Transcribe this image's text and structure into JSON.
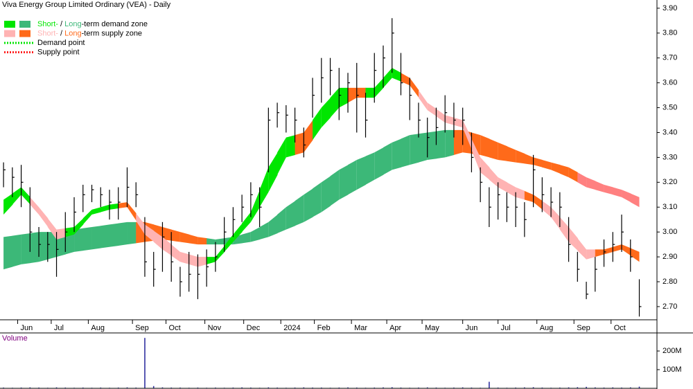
{
  "chart_data": [
    {
      "type": "candlestick",
      "title": "Viva Energy Group Limited Ordinary (VEA) - Daily",
      "legend": [
        {
          "swatches": [
            "#00e600",
            "#3cb878"
          ],
          "parts": [
            {
              "text": "Short-",
              "color": "#00e600"
            },
            {
              "text": " / "
            },
            {
              "text": "Long",
              "color": "#3cb878"
            },
            {
              "text": "-term demand zone"
            }
          ]
        },
        {
          "swatches": [
            "#ffb3b3",
            "#ff6a1a"
          ],
          "parts": [
            {
              "text": "Short-",
              "color": "#ffb3b3"
            },
            {
              "text": " / "
            },
            {
              "text": "Long",
              "color": "#ff6a1a"
            },
            {
              "text": "-term supply zone"
            }
          ]
        },
        {
          "line": "#00e600",
          "parts": [
            {
              "text": "Demand point"
            }
          ]
        },
        {
          "line": "#ff2020",
          "parts": [
            {
              "text": "Supply point"
            }
          ]
        }
      ],
      "xlim": [
        0,
        372
      ],
      "xticks": [
        {
          "value": 10,
          "label": "Jun"
        },
        {
          "value": 29,
          "label": "Jul"
        },
        {
          "value": 50,
          "label": "Aug"
        },
        {
          "value": 75,
          "label": "Sep"
        },
        {
          "value": 94,
          "label": "Oct"
        },
        {
          "value": 116,
          "label": "Nov"
        },
        {
          "value": 138,
          "label": "Dec"
        },
        {
          "value": 159,
          "label": "2024"
        },
        {
          "value": 178,
          "label": "Feb"
        },
        {
          "value": 199,
          "label": "Mar"
        },
        {
          "value": 219,
          "label": "Apr"
        },
        {
          "value": 239,
          "label": "May"
        },
        {
          "value": 262,
          "label": "Jun"
        },
        {
          "value": 282,
          "label": "Jul"
        },
        {
          "value": 304,
          "label": "Aug"
        },
        {
          "value": 325,
          "label": "Sep"
        },
        {
          "value": 346,
          "label": "Oct"
        }
      ],
      "ylim": [
        2.647,
        3.933
      ],
      "yticks": [
        {
          "value": 2.7,
          "label": "2.70"
        },
        {
          "value": 2.8,
          "label": "2.80"
        },
        {
          "value": 2.9,
          "label": "2.90"
        },
        {
          "value": 3.0,
          "label": "3.00"
        },
        {
          "value": 3.1,
          "label": "3.10"
        },
        {
          "value": 3.2,
          "label": "3.20"
        },
        {
          "value": 3.3,
          "label": "3.30"
        },
        {
          "value": 3.4,
          "label": "3.40"
        },
        {
          "value": 3.5,
          "label": "3.50"
        },
        {
          "value": 3.6,
          "label": "3.60"
        },
        {
          "value": 3.7,
          "label": "3.70"
        },
        {
          "value": 3.8,
          "label": "3.80"
        },
        {
          "value": 3.9,
          "label": "3.90"
        }
      ],
      "x": [
        2,
        7,
        12,
        17,
        22,
        27,
        32,
        37,
        42,
        47,
        52,
        57,
        62,
        67,
        72,
        77,
        82,
        87,
        92,
        97,
        102,
        107,
        112,
        117,
        122,
        127,
        132,
        137,
        142,
        147,
        152,
        157,
        162,
        167,
        172,
        177,
        182,
        187,
        192,
        197,
        202,
        207,
        212,
        217,
        222,
        227,
        232,
        237,
        242,
        247,
        252,
        257,
        262,
        267,
        272,
        277,
        282,
        287,
        292,
        297,
        302,
        307,
        312,
        317,
        322,
        327,
        332,
        337,
        342,
        347,
        352,
        357,
        362
      ],
      "high": [
        3.28,
        3.26,
        3.27,
        3.18,
        3.02,
        3.0,
        3.0,
        3.08,
        3.14,
        3.19,
        3.19,
        3.18,
        3.17,
        3.18,
        3.26,
        3.2,
        3.06,
        2.92,
        3.04,
        3.0,
        2.86,
        2.92,
        2.91,
        2.93,
        2.96,
        3.06,
        3.1,
        3.15,
        3.2,
        3.18,
        3.5,
        3.52,
        3.51,
        3.5,
        3.42,
        3.62,
        3.7,
        3.7,
        3.66,
        3.64,
        3.68,
        3.56,
        3.72,
        3.75,
        3.86,
        3.72,
        3.62,
        3.52,
        3.46,
        3.5,
        3.55,
        3.52,
        3.5,
        3.4,
        3.26,
        3.18,
        3.2,
        3.16,
        3.16,
        3.12,
        3.31,
        3.22,
        3.18,
        3.16,
        3.06,
        2.92,
        2.8,
        2.9,
        2.97,
        3.0,
        3.07,
        2.97,
        2.81
      ],
      "low": [
        3.18,
        3.14,
        3.1,
        2.92,
        2.9,
        2.88,
        2.82,
        2.92,
        3.0,
        3.08,
        3.12,
        3.1,
        3.05,
        3.05,
        3.1,
        3.1,
        2.82,
        2.78,
        2.84,
        2.8,
        2.74,
        2.76,
        2.73,
        2.78,
        2.84,
        2.92,
        2.98,
        3.04,
        3.06,
        3.02,
        3.24,
        3.42,
        3.4,
        3.36,
        3.3,
        3.46,
        3.52,
        3.55,
        3.45,
        3.48,
        3.4,
        3.38,
        3.52,
        3.58,
        3.64,
        3.55,
        3.45,
        3.38,
        3.3,
        3.35,
        3.4,
        3.38,
        3.35,
        3.24,
        3.12,
        3.02,
        3.05,
        3.04,
        3.02,
        2.98,
        3.1,
        3.08,
        3.06,
        3.02,
        2.88,
        2.8,
        2.73,
        2.76,
        2.86,
        2.88,
        2.92,
        2.84,
        2.66
      ],
      "values": [
        3.25,
        3.22,
        3.2,
        3.0,
        2.95,
        2.95,
        2.93,
        3.0,
        3.08,
        3.15,
        3.17,
        3.15,
        3.12,
        3.12,
        3.18,
        3.15,
        2.88,
        2.85,
        2.98,
        2.88,
        2.8,
        2.83,
        2.83,
        2.86,
        2.9,
        3.0,
        3.05,
        3.1,
        3.15,
        3.1,
        3.45,
        3.48,
        3.47,
        3.45,
        3.35,
        3.55,
        3.62,
        3.65,
        3.55,
        3.6,
        3.55,
        3.45,
        3.65,
        3.7,
        3.8,
        3.6,
        3.55,
        3.45,
        3.38,
        3.42,
        3.48,
        3.45,
        3.45,
        3.3,
        3.2,
        3.1,
        3.15,
        3.1,
        3.1,
        3.05,
        3.25,
        3.15,
        3.12,
        3.1,
        2.95,
        2.85,
        2.75,
        2.85,
        2.92,
        2.95,
        3.0,
        2.9,
        2.7
      ],
      "bands": [
        {
          "x": [
            2,
            12,
            22,
            32,
            42,
            52,
            62,
            72,
            82,
            92,
            102,
            112,
            122,
            132,
            142,
            152,
            162,
            172,
            182,
            192,
            202,
            212,
            222,
            232,
            242,
            252,
            262,
            272,
            282,
            292,
            302,
            312,
            322,
            332,
            342,
            352,
            362
          ],
          "upper": [
            2.98,
            2.99,
            3.0,
            3.0,
            3.01,
            3.02,
            3.03,
            3.04,
            3.04,
            3.02,
            3.0,
            2.98,
            2.97,
            2.98,
            3.0,
            3.04,
            3.1,
            3.15,
            3.2,
            3.25,
            3.29,
            3.32,
            3.36,
            3.39,
            3.4,
            3.41,
            3.41,
            3.39,
            3.36,
            3.33,
            3.3,
            3.28,
            3.26,
            3.22,
            3.19,
            3.17,
            3.14
          ],
          "lower": [
            2.85,
            2.87,
            2.88,
            2.9,
            2.92,
            2.93,
            2.94,
            2.95,
            2.96,
            2.97,
            2.96,
            2.95,
            2.95,
            2.95,
            2.96,
            2.98,
            3.01,
            3.04,
            3.08,
            3.13,
            3.17,
            3.21,
            3.25,
            3.27,
            3.29,
            3.3,
            3.32,
            3.31,
            3.29,
            3.28,
            3.27,
            3.25,
            3.22,
            3.18,
            3.16,
            3.14,
            3.1
          ],
          "colors": [
            "#3cb878",
            "#3cb878",
            "#3cb878",
            "#3cb878",
            "#3cb878",
            "#3cb878",
            "#3cb878",
            "#3cb878",
            "#ff6a1a",
            "#ff6a1a",
            "#ff6a1a",
            "#ff6a1a",
            "#3cb878",
            "#3cb878",
            "#3cb878",
            "#3cb878",
            "#3cb878",
            "#3cb878",
            "#3cb878",
            "#3cb878",
            "#3cb878",
            "#3cb878",
            "#3cb878",
            "#3cb878",
            "#3cb878",
            "#3cb878",
            "#ff6a1a",
            "#ff6a1a",
            "#ff6a1a",
            "#ff6a1a",
            "#ff6a1a",
            "#ff6a1a",
            "#ff6a1a",
            "#ff8080",
            "#ff8080",
            "#ff8080",
            "#ff8080"
          ]
        },
        {
          "x": [
            2,
            12,
            22,
            32,
            42,
            52,
            62,
            72,
            82,
            92,
            102,
            112,
            122,
            132,
            142,
            152,
            162,
            172,
            182,
            192,
            202,
            212,
            222,
            232,
            242,
            252,
            262,
            272,
            282,
            292,
            302,
            312,
            322,
            332,
            342,
            352,
            362
          ],
          "upper": [
            3.13,
            3.18,
            3.1,
            3.01,
            3.02,
            3.09,
            3.11,
            3.12,
            3.03,
            2.98,
            2.92,
            2.9,
            2.9,
            2.99,
            3.08,
            3.26,
            3.38,
            3.4,
            3.5,
            3.58,
            3.58,
            3.58,
            3.66,
            3.62,
            3.52,
            3.47,
            3.45,
            3.3,
            3.22,
            3.18,
            3.15,
            3.1,
            3.02,
            2.93,
            2.93,
            2.95,
            2.92
          ],
          "lower": [
            3.07,
            3.15,
            3.07,
            2.97,
            2.99,
            3.07,
            3.09,
            3.1,
            2.99,
            2.93,
            2.88,
            2.86,
            2.88,
            2.96,
            3.04,
            3.16,
            3.3,
            3.32,
            3.42,
            3.5,
            3.54,
            3.54,
            3.62,
            3.59,
            3.49,
            3.44,
            3.42,
            3.24,
            3.18,
            3.14,
            3.12,
            3.06,
            2.96,
            2.89,
            2.91,
            2.93,
            2.88
          ],
          "colors": [
            "#00e600",
            "#00e600",
            "#ffb3b3",
            "#ffb3b3",
            "#00e600",
            "#00e600",
            "#00e600",
            "#ff6a1a",
            "#ffb3b3",
            "#ffb3b3",
            "#ffb3b3",
            "#ffb3b3",
            "#00e600",
            "#00e600",
            "#00e600",
            "#00e600",
            "#00e600",
            "#ff6a1a",
            "#00e600",
            "#00e600",
            "#ff6a1a",
            "#00e600",
            "#00e600",
            "#ff6a1a",
            "#ffb3b3",
            "#ffb3b3",
            "#ffb3b3",
            "#ffb3b3",
            "#ffb3b3",
            "#ffb3b3",
            "#ff6a1a",
            "#ffb3b3",
            "#ffb3b3",
            "#ffb3b3",
            "#ff6a1a",
            "#ff6a1a",
            "#ff6a1a"
          ]
        }
      ]
    },
    {
      "type": "bar",
      "title": "Volume",
      "color": "#3030a0",
      "xlim": [
        0,
        372
      ],
      "ylim": [
        0,
        293000000
      ],
      "yticks": [
        {
          "value": 100000000,
          "label": "100M"
        },
        {
          "value": 200000000,
          "label": "200M"
        }
      ],
      "x": [
        2,
        7,
        12,
        17,
        22,
        27,
        32,
        37,
        42,
        47,
        52,
        57,
        62,
        67,
        72,
        77,
        82,
        87,
        92,
        97,
        102,
        107,
        112,
        117,
        122,
        127,
        132,
        137,
        142,
        147,
        152,
        157,
        162,
        167,
        172,
        177,
        182,
        187,
        192,
        197,
        202,
        207,
        212,
        217,
        222,
        227,
        232,
        237,
        242,
        247,
        252,
        257,
        262,
        267,
        272,
        277,
        282,
        287,
        292,
        297,
        302,
        307,
        312,
        317,
        322,
        327,
        332,
        337,
        342,
        347,
        352,
        357,
        362
      ],
      "values": [
        4000000,
        3000000,
        4000000,
        5000000,
        4000000,
        3000000,
        5000000,
        4000000,
        3000000,
        4000000,
        3000000,
        4000000,
        3000000,
        4000000,
        5000000,
        4000000,
        270000000,
        12000000,
        5000000,
        4000000,
        4000000,
        3000000,
        4000000,
        3000000,
        4000000,
        3000000,
        4000000,
        5000000,
        4000000,
        3000000,
        5000000,
        4000000,
        3000000,
        4000000,
        5000000,
        4000000,
        4000000,
        3000000,
        4000000,
        5000000,
        4000000,
        3000000,
        4000000,
        5000000,
        6000000,
        4000000,
        3000000,
        4000000,
        5000000,
        4000000,
        3000000,
        4000000,
        5000000,
        4000000,
        3000000,
        35000000,
        4000000,
        3000000,
        4000000,
        5000000,
        6000000,
        4000000,
        3000000,
        4000000,
        5000000,
        6000000,
        8000000,
        5000000,
        4000000,
        5000000,
        4000000,
        5000000,
        9000000
      ]
    }
  ]
}
